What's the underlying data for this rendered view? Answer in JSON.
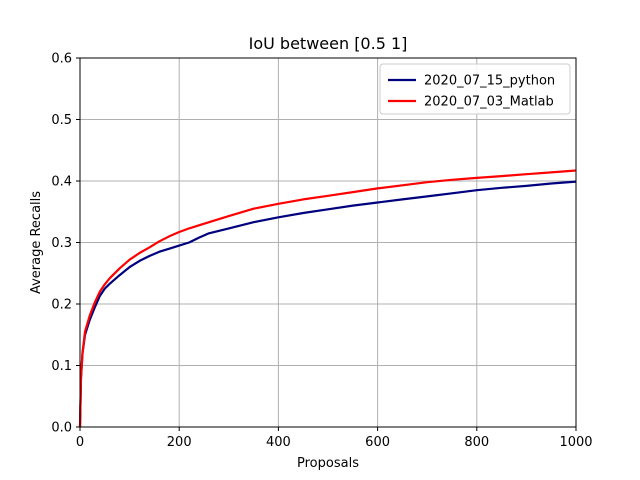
{
  "chart_data": {
    "type": "line",
    "title": "IoU between [0.5 1]",
    "xlabel": "Proposals",
    "ylabel": "Average Recalls",
    "xlim": [
      0,
      1000
    ],
    "ylim": [
      0,
      0.6
    ],
    "xticks": [
      0,
      200,
      400,
      600,
      800,
      1000
    ],
    "xtick_labels": [
      "0",
      "200",
      "400",
      "600",
      "800",
      "1000"
    ],
    "yticks": [
      0.0,
      0.1,
      0.2,
      0.3,
      0.4,
      0.5,
      0.6
    ],
    "ytick_labels": [
      "0.0",
      "0.1",
      "0.2",
      "0.3",
      "0.4",
      "0.5",
      "0.6"
    ],
    "grid": true,
    "legend_position": "top-right",
    "series": [
      {
        "name": "2020_07_15_python",
        "color": "#00007f",
        "x": [
          0,
          2,
          5,
          10,
          20,
          30,
          40,
          50,
          60,
          70,
          80,
          100,
          120,
          140,
          160,
          180,
          200,
          220,
          240,
          260,
          300,
          350,
          400,
          450,
          500,
          550,
          600,
          650,
          700,
          750,
          800,
          850,
          900,
          950,
          1000
        ],
        "y": [
          0.0,
          0.08,
          0.12,
          0.15,
          0.175,
          0.195,
          0.213,
          0.225,
          0.233,
          0.24,
          0.247,
          0.26,
          0.27,
          0.278,
          0.285,
          0.29,
          0.295,
          0.3,
          0.308,
          0.315,
          0.323,
          0.333,
          0.341,
          0.348,
          0.354,
          0.36,
          0.365,
          0.37,
          0.375,
          0.38,
          0.385,
          0.389,
          0.392,
          0.396,
          0.399
        ]
      },
      {
        "name": "2020_07_03_Matlab",
        "color": "#ff0000",
        "x": [
          0,
          2,
          5,
          10,
          20,
          30,
          40,
          50,
          60,
          70,
          80,
          100,
          120,
          140,
          160,
          180,
          200,
          220,
          240,
          260,
          300,
          350,
          400,
          450,
          500,
          550,
          600,
          650,
          700,
          750,
          800,
          850,
          900,
          950,
          1000
        ],
        "y": [
          0.0,
          0.08,
          0.12,
          0.155,
          0.182,
          0.203,
          0.22,
          0.232,
          0.242,
          0.25,
          0.258,
          0.272,
          0.283,
          0.292,
          0.302,
          0.31,
          0.317,
          0.323,
          0.328,
          0.333,
          0.343,
          0.355,
          0.363,
          0.37,
          0.376,
          0.382,
          0.388,
          0.393,
          0.398,
          0.402,
          0.405,
          0.408,
          0.411,
          0.414,
          0.417
        ]
      }
    ]
  }
}
